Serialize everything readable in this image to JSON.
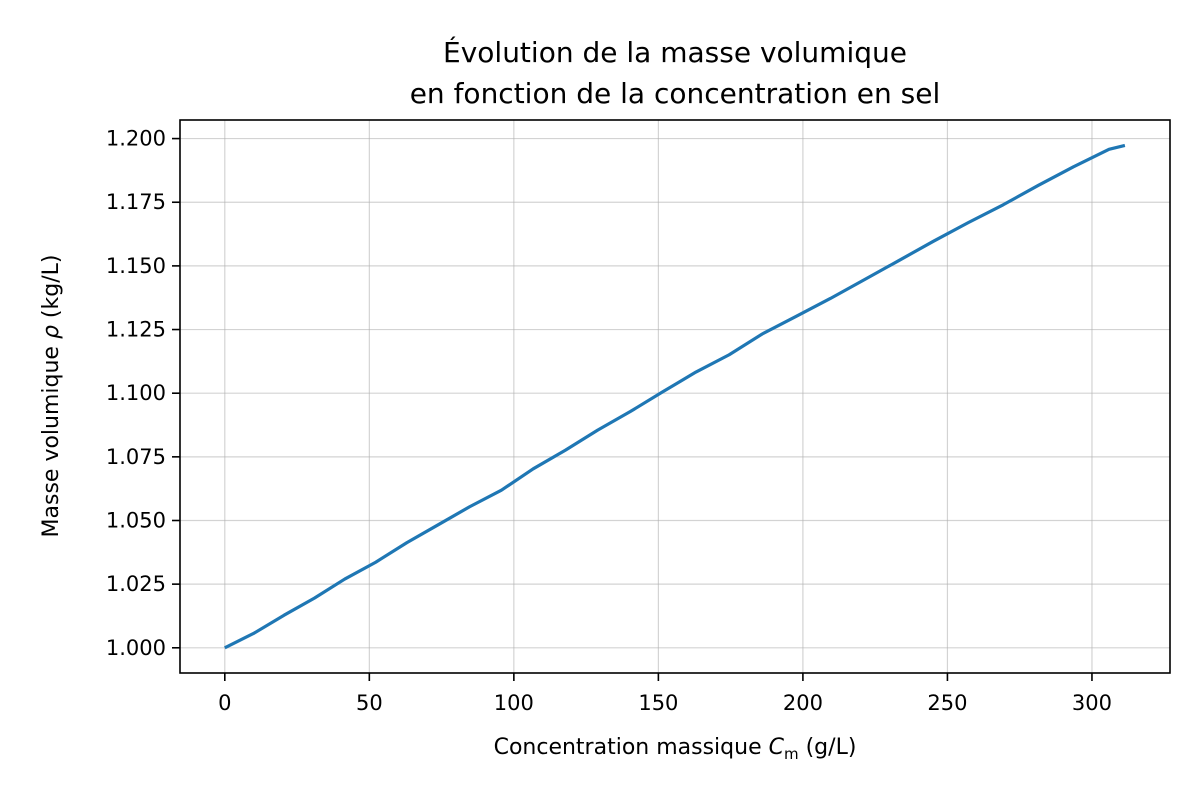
{
  "chart_data": {
    "type": "line",
    "title_lines": [
      "Évolution de la masse volumique",
      "en fonction de la concentration en sel"
    ],
    "xlabel": {
      "prefix": "Concentration massique ",
      "symbol": "C",
      "subscript": "m",
      "suffix": " (g/L)"
    },
    "ylabel": {
      "prefix": "Masse volumique ",
      "symbol": "ρ",
      "suffix": " (kg/L)"
    },
    "xlim": [
      -15.5,
      327
    ],
    "ylim": [
      0.9901,
      1.2073
    ],
    "xticks": [
      0,
      50,
      100,
      150,
      200,
      250,
      300
    ],
    "xtick_labels": [
      "0",
      "50",
      "100",
      "150",
      "200",
      "250",
      "300"
    ],
    "yticks": [
      1.0,
      1.025,
      1.05,
      1.075,
      1.1,
      1.125,
      1.15,
      1.175,
      1.2
    ],
    "ytick_labels": [
      "1.000",
      "1.025",
      "1.050",
      "1.075",
      "1.100",
      "1.125",
      "1.150",
      "1.175",
      "1.200"
    ],
    "grid": true,
    "series": [
      {
        "color": "#1f77b4",
        "x": [
          0,
          10.2,
          20.5,
          31,
          41.5,
          52.2,
          63,
          73.8,
          84.7,
          95.7,
          106.7,
          117.8,
          129,
          140.3,
          151.6,
          163,
          174.5,
          186,
          197.7,
          209.5,
          221.3,
          233.2,
          245.2,
          257.2,
          269.3,
          281.4,
          293.6,
          305.9,
          311.4
        ],
        "y": [
          1.0,
          1.0058,
          1.0128,
          1.0195,
          1.027,
          1.0336,
          1.0413,
          1.0483,
          1.0554,
          1.0619,
          1.0703,
          1.0776,
          1.0855,
          1.0928,
          1.1006,
          1.1083,
          1.1151,
          1.1233,
          1.1302,
          1.1372,
          1.1446,
          1.1521,
          1.1597,
          1.167,
          1.174,
          1.1816,
          1.1889,
          1.1958,
          1.1973
        ]
      }
    ]
  }
}
